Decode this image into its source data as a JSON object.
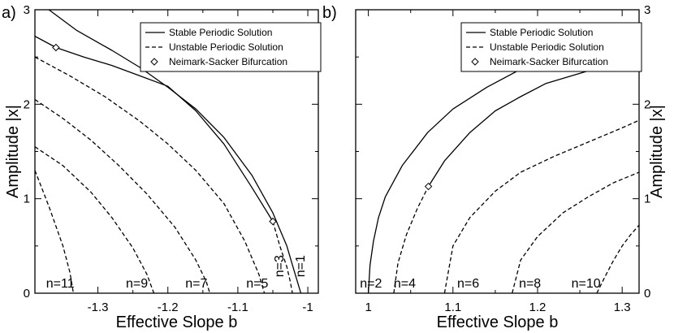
{
  "chart_data": [
    {
      "panel_label": "a)",
      "type": "line",
      "xlabel": "Effective Slope b",
      "ylabel": "Amplitude |x|",
      "xlim": [
        -1.39,
        -0.985
      ],
      "ylim": [
        0,
        3
      ],
      "xticks": [
        -1.3,
        -1.2,
        -1.1,
        -1.0
      ],
      "xtick_labels": [
        "-1.3",
        "-1.2",
        "-1.1",
        "-1"
      ],
      "yticks": [
        0,
        1,
        2,
        3
      ],
      "ytick_labels": [
        "0",
        "1",
        "2",
        "3"
      ],
      "y_axis_side": "left",
      "legend": {
        "position": "top-right",
        "entries": [
          {
            "label": "Stable Periodic Solution",
            "style": "solid"
          },
          {
            "label": "Unstable Periodic Solution",
            "style": "dashed"
          },
          {
            "label": "Neimark-Sacker Bifurcation",
            "style": "diamond"
          }
        ]
      },
      "series": [
        {
          "id": "n1",
          "style": "solid",
          "x": [
            -1.37,
            -1.33,
            -1.28,
            -1.24,
            -1.2,
            -1.16,
            -1.12,
            -1.08,
            -1.05,
            -1.03,
            -1.02,
            -1.01
          ],
          "y": [
            3.0,
            2.78,
            2.57,
            2.39,
            2.18,
            1.95,
            1.65,
            1.25,
            0.85,
            0.5,
            0.25,
            0.0
          ]
        },
        {
          "id": "n3_stable",
          "style": "solid",
          "x": [
            -1.39,
            -1.36,
            -1.32,
            -1.28,
            -1.24,
            -1.2,
            -1.16,
            -1.12,
            -1.08,
            -1.05
          ],
          "y": [
            2.72,
            2.6,
            2.5,
            2.41,
            2.3,
            2.19,
            1.93,
            1.58,
            1.12,
            0.76
          ]
        },
        {
          "id": "n3_unstable",
          "style": "dashed",
          "x": [
            -1.05,
            -1.04,
            -1.03,
            -1.025,
            -1.022
          ],
          "y": [
            0.76,
            0.5,
            0.28,
            0.12,
            0.0
          ]
        },
        {
          "id": "n5",
          "style": "dashed",
          "x": [
            -1.39,
            -1.34,
            -1.29,
            -1.24,
            -1.2,
            -1.16,
            -1.12,
            -1.09,
            -1.07,
            -1.062
          ],
          "y": [
            2.5,
            2.3,
            2.08,
            1.82,
            1.58,
            1.3,
            0.95,
            0.55,
            0.2,
            0.0
          ]
        },
        {
          "id": "n7",
          "style": "dashed",
          "x": [
            -1.39,
            -1.35,
            -1.31,
            -1.27,
            -1.23,
            -1.19,
            -1.16,
            -1.145,
            -1.14
          ],
          "y": [
            2.05,
            1.85,
            1.62,
            1.35,
            1.05,
            0.7,
            0.35,
            0.12,
            0.0
          ]
        },
        {
          "id": "n9",
          "style": "dashed",
          "x": [
            -1.39,
            -1.35,
            -1.31,
            -1.28,
            -1.25,
            -1.23,
            -1.22
          ],
          "y": [
            1.55,
            1.35,
            1.07,
            0.8,
            0.48,
            0.2,
            0.0
          ]
        },
        {
          "id": "n11",
          "style": "dashed",
          "x": [
            -1.39,
            -1.37,
            -1.35,
            -1.34,
            -1.335
          ],
          "y": [
            1.3,
            0.92,
            0.5,
            0.22,
            0.0
          ]
        }
      ],
      "bifurcation_points": [
        {
          "x": -1.36,
          "y": 2.6
        },
        {
          "x": -1.05,
          "y": 0.76
        }
      ],
      "curve_labels": [
        {
          "text": "n=11",
          "x": -1.374,
          "y": 0.06,
          "rotate": 0
        },
        {
          "text": "n=9",
          "x": -1.26,
          "y": 0.06,
          "rotate": 0
        },
        {
          "text": "n=7",
          "x": -1.175,
          "y": 0.06,
          "rotate": 0
        },
        {
          "text": "n=5",
          "x": -1.088,
          "y": 0.06,
          "rotate": 0
        },
        {
          "text": "n=3",
          "x": -1.035,
          "y": 0.17,
          "rotate": -90
        },
        {
          "text": "n=1",
          "x": -1.005,
          "y": 0.17,
          "rotate": -90
        }
      ]
    },
    {
      "panel_label": "b)",
      "type": "line",
      "xlabel": "Effective Slope b",
      "ylabel": "Amplitude |x|",
      "xlim": [
        0.985,
        1.32
      ],
      "ylim": [
        0,
        3
      ],
      "xticks": [
        1.0,
        1.1,
        1.2,
        1.3
      ],
      "xtick_labels": [
        "1",
        "1.1",
        "1.2",
        "1.3"
      ],
      "yticks": [
        0,
        1,
        2,
        3
      ],
      "ytick_labels": [
        "0",
        "1",
        "2",
        "3"
      ],
      "y_axis_side": "right",
      "legend": {
        "position": "top-right",
        "entries": [
          {
            "label": "Stable Periodic Solution",
            "style": "solid"
          },
          {
            "label": "Unstable Periodic Solution",
            "style": "dashed"
          },
          {
            "label": "Neimark-Sacker Bifurcation",
            "style": "diamond"
          }
        ]
      },
      "series": [
        {
          "id": "n2",
          "style": "solid",
          "x": [
            1.0,
            1.002,
            1.006,
            1.012,
            1.02,
            1.04,
            1.07,
            1.1,
            1.14,
            1.18,
            1.22,
            1.26,
            1.3,
            1.32
          ],
          "y": [
            0.0,
            0.3,
            0.55,
            0.8,
            1.02,
            1.35,
            1.7,
            1.95,
            2.18,
            2.37,
            2.5,
            2.61,
            2.7,
            2.75
          ]
        },
        {
          "id": "n4_unstable",
          "style": "dashed",
          "x": [
            1.03,
            1.035,
            1.045,
            1.058,
            1.071
          ],
          "y": [
            0.0,
            0.32,
            0.62,
            0.9,
            1.13
          ]
        },
        {
          "id": "n4_stable",
          "style": "solid",
          "x": [
            1.071,
            1.09,
            1.12,
            1.15,
            1.18,
            1.21,
            1.24,
            1.27,
            1.3,
            1.32
          ],
          "y": [
            1.13,
            1.4,
            1.7,
            1.93,
            2.08,
            2.22,
            2.3,
            2.38,
            2.48,
            2.55
          ]
        },
        {
          "id": "n6",
          "style": "dashed",
          "x": [
            1.09,
            1.1,
            1.12,
            1.15,
            1.18,
            1.22,
            1.26,
            1.3,
            1.32
          ],
          "y": [
            0.0,
            0.5,
            0.8,
            1.08,
            1.28,
            1.45,
            1.6,
            1.75,
            1.83
          ]
        },
        {
          "id": "n8",
          "style": "dashed",
          "x": [
            1.17,
            1.18,
            1.2,
            1.23,
            1.26,
            1.29,
            1.32
          ],
          "y": [
            0.0,
            0.35,
            0.6,
            0.85,
            1.02,
            1.17,
            1.28
          ]
        },
        {
          "id": "n10",
          "style": "dashed",
          "x": [
            1.27,
            1.28,
            1.29,
            1.3,
            1.31,
            1.32
          ],
          "y": [
            0.0,
            0.18,
            0.35,
            0.5,
            0.62,
            0.72
          ]
        }
      ],
      "bifurcation_points": [
        {
          "x": 1.071,
          "y": 1.13
        }
      ],
      "curve_labels": [
        {
          "text": "n=2",
          "x": 0.99,
          "y": 0.06,
          "rotate": 0
        },
        {
          "text": "n=4",
          "x": 1.03,
          "y": 0.06,
          "rotate": 0
        },
        {
          "text": "n=6",
          "x": 1.105,
          "y": 0.06,
          "rotate": 0
        },
        {
          "text": "n=8",
          "x": 1.178,
          "y": 0.06,
          "rotate": 0
        },
        {
          "text": "n=10",
          "x": 1.24,
          "y": 0.06,
          "rotate": 0
        }
      ]
    }
  ]
}
